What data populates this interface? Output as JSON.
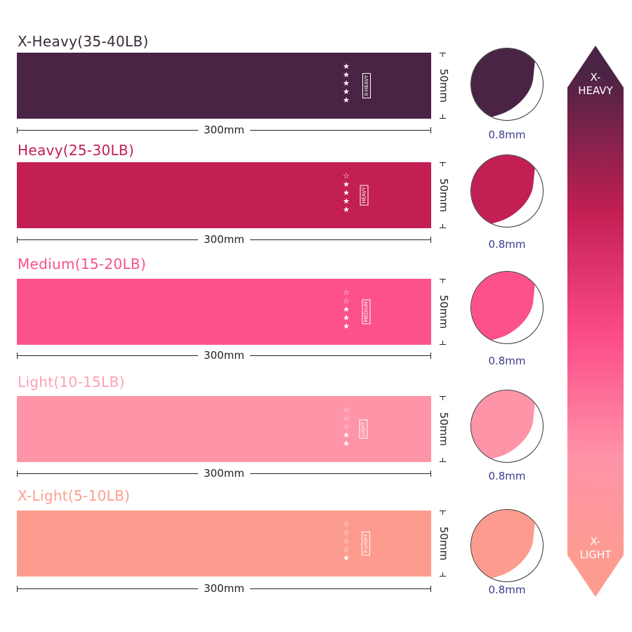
{
  "bands": [
    {
      "title": "X-Heavy(35-40LB)",
      "tag": "X-HEAVY",
      "stars_filled": 5,
      "stars_total": 5,
      "length": "300mm",
      "width": "50mm",
      "thickness": "0.8mm",
      "color": "#4a2444",
      "title_color": "#3b2a3a"
    },
    {
      "title": "Heavy(25-30LB)",
      "tag": "HEAVY",
      "stars_filled": 4,
      "stars_total": 5,
      "length": "300mm",
      "width": "50mm",
      "thickness": "0.8mm",
      "color": "#c21f53",
      "title_color": "#c0204f"
    },
    {
      "title": "Medium(15-20LB)",
      "tag": "MEDIUM",
      "stars_filled": 3,
      "stars_total": 5,
      "length": "300mm",
      "width": "50mm",
      "thickness": "0.8mm",
      "color": "#fc5289",
      "title_color": "#f9508a"
    },
    {
      "title": "Light(10-15LB)",
      "tag": "LIGHT",
      "stars_filled": 2,
      "stars_total": 5,
      "length": "300mm",
      "width": "50mm",
      "thickness": "0.8mm",
      "color": "#fe94a8",
      "title_color": "#fba2b4"
    },
    {
      "title": "X-Light(5-10LB)",
      "tag": "X-LIGHT",
      "stars_filled": 1,
      "stars_total": 5,
      "length": "300mm",
      "width": "50mm",
      "thickness": "0.8mm",
      "color": "#fd9c8e",
      "title_color": "#fca08f"
    }
  ],
  "scale": {
    "top_label": "X-\nHEAVY",
    "bottom_label": "X-\nLIGHT"
  }
}
